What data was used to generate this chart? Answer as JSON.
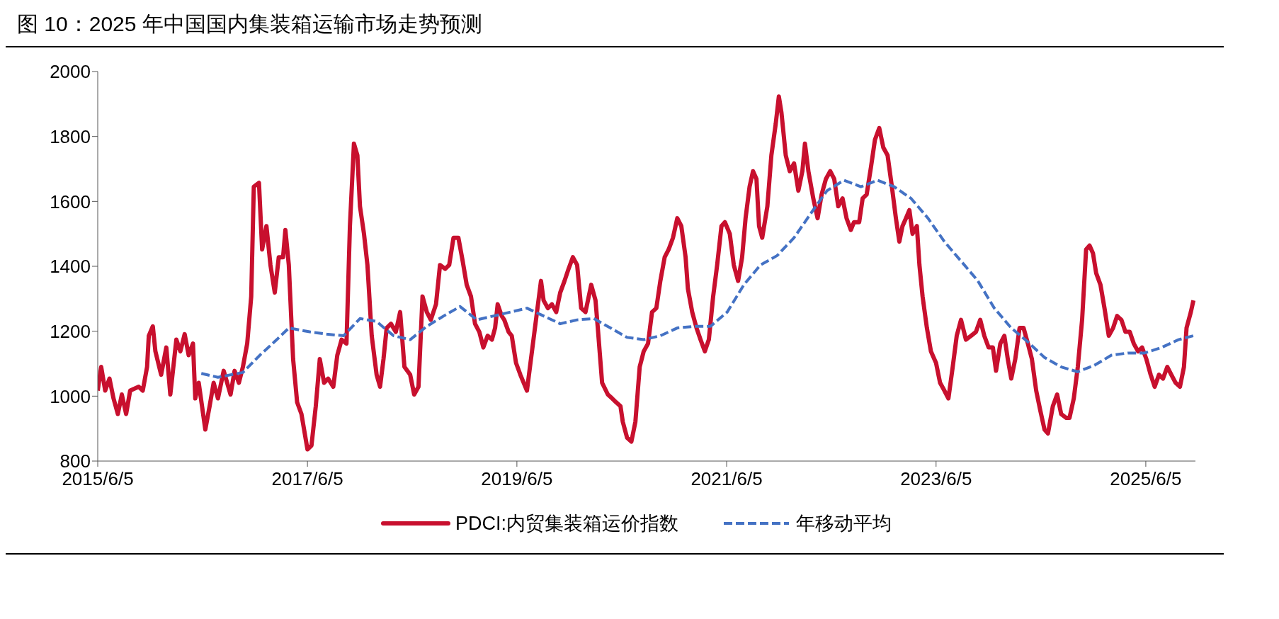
{
  "chart_data": {
    "type": "line",
    "title": "图 10：2025 年中国国内集装箱运输市场走势预测",
    "xlim": [
      "2015-06-05",
      "2025-11-25"
    ],
    "xticks": [
      {
        "value": "2015-06-05",
        "label": "2015/6/5"
      },
      {
        "value": "2017-06-05",
        "label": "2017/6/5"
      },
      {
        "value": "2019-06-05",
        "label": "2019/6/5"
      },
      {
        "value": "2021-06-05",
        "label": "2021/6/5"
      },
      {
        "value": "2023-06-05",
        "label": "2023/6/5"
      },
      {
        "value": "2025-06-05",
        "label": "2025/6/5"
      }
    ],
    "ylim": [
      800,
      2000
    ],
    "yticks": [
      800,
      1000,
      1200,
      1400,
      1600,
      1800,
      2000
    ],
    "legend": "bottom",
    "marker": "none",
    "series": [
      {
        "name": "PDCI:内贸集装箱运价指数",
        "color": "#c8102e",
        "line_style": "solid",
        "x": [
          "2015-06-05",
          "2015-06-17",
          "2015-07-01",
          "2015-07-16",
          "2015-07-30",
          "2015-08-14",
          "2015-08-28",
          "2015-09-12",
          "2015-09-26",
          "2015-10-26",
          "2015-11-09",
          "2015-11-24",
          "2015-11-30",
          "2015-12-14",
          "2015-12-23",
          "2016-01-12",
          "2016-01-30",
          "2016-02-13",
          "2016-03-05",
          "2016-03-19",
          "2016-04-03",
          "2016-04-17",
          "2016-05-02",
          "2016-05-10",
          "2016-05-22",
          "2016-06-14",
          "2016-06-29",
          "2016-07-13",
          "2016-07-28",
          "2016-08-17",
          "2016-09-10",
          "2016-09-24",
          "2016-10-09",
          "2016-10-23",
          "2016-11-07",
          "2016-11-21",
          "2016-11-30",
          "2016-12-18",
          "2016-12-29",
          "2017-01-13",
          "2017-01-27",
          "2017-02-11",
          "2017-02-25",
          "2017-03-12",
          "2017-03-20",
          "2017-04-01",
          "2017-04-16",
          "2017-04-30",
          "2017-05-15",
          "2017-06-05",
          "2017-06-19",
          "2017-07-04",
          "2017-07-18",
          "2017-08-02",
          "2017-08-16",
          "2017-09-03",
          "2017-09-17",
          "2017-10-02",
          "2017-10-19",
          "2017-10-31",
          "2017-11-14",
          "2017-11-26",
          "2017-12-05",
          "2017-12-19",
          "2017-12-31",
          "2018-01-15",
          "2018-02-01",
          "2018-02-13",
          "2018-02-25",
          "2018-03-08",
          "2018-03-23",
          "2018-04-09",
          "2018-04-24",
          "2018-05-09",
          "2018-05-29",
          "2018-06-12",
          "2018-06-27",
          "2018-07-11",
          "2018-07-26",
          "2018-08-09",
          "2018-08-27",
          "2018-09-10",
          "2018-09-28",
          "2018-10-12",
          "2018-10-27",
          "2018-11-13",
          "2018-11-28",
          "2018-12-12",
          "2018-12-27",
          "2019-01-10",
          "2019-01-25",
          "2019-02-08",
          "2019-02-23",
          "2019-03-10",
          "2019-03-21",
          "2019-03-30",
          "2019-04-13",
          "2019-04-22",
          "2019-05-07",
          "2019-05-18",
          "2019-06-02",
          "2019-06-17",
          "2019-07-10",
          "2019-07-24",
          "2019-08-14",
          "2019-08-28",
          "2019-09-06",
          "2019-09-21",
          "2019-10-05",
          "2019-10-20",
          "2019-11-03",
          "2019-11-18",
          "2019-12-02",
          "2019-12-17",
          "2020-01-01",
          "2020-01-15",
          "2020-01-30",
          "2020-02-19",
          "2020-03-05",
          "2020-03-13",
          "2020-03-28",
          "2020-04-17",
          "2020-05-02",
          "2020-05-16",
          "2020-05-31",
          "2020-06-08",
          "2020-06-23",
          "2020-07-08",
          "2020-07-22",
          "2020-08-06",
          "2020-08-20",
          "2020-09-04",
          "2020-09-18",
          "2020-10-03",
          "2020-10-17",
          "2020-11-01",
          "2020-11-15",
          "2020-11-30",
          "2020-12-15",
          "2020-12-29",
          "2021-01-13",
          "2021-01-21",
          "2021-02-05",
          "2021-02-20",
          "2021-03-06",
          "2021-03-21",
          "2021-04-04",
          "2021-04-19",
          "2021-05-03",
          "2021-05-18",
          "2021-05-30",
          "2021-06-16",
          "2021-06-30",
          "2021-07-15",
          "2021-07-29",
          "2021-08-10",
          "2021-08-24",
          "2021-09-05",
          "2021-09-17",
          "2021-09-26",
          "2021-10-07",
          "2021-10-25",
          "2021-11-08",
          "2021-11-23",
          "2021-12-04",
          "2021-12-13",
          "2021-12-28",
          "2022-01-11",
          "2022-01-26",
          "2022-02-10",
          "2022-02-24",
          "2022-03-05",
          "2022-03-17",
          "2022-04-03",
          "2022-04-18",
          "2022-05-02",
          "2022-05-17",
          "2022-06-01",
          "2022-06-15",
          "2022-06-29",
          "2022-07-14",
          "2022-07-28",
          "2022-08-12",
          "2022-08-23",
          "2022-09-10",
          "2022-09-22",
          "2022-10-06",
          "2022-10-21",
          "2022-11-04",
          "2022-11-19",
          "2022-12-03",
          "2022-12-18",
          "2023-01-02",
          "2023-01-16",
          "2023-01-28",
          "2023-02-08",
          "2023-02-20",
          "2023-03-04",
          "2023-03-15",
          "2023-03-30",
          "2023-04-08",
          "2023-04-19",
          "2023-05-04",
          "2023-05-18",
          "2023-06-05",
          "2023-06-19",
          "2023-07-04",
          "2023-07-18",
          "2023-08-02",
          "2023-08-16",
          "2023-08-31",
          "2023-09-17",
          "2023-10-05",
          "2023-10-22",
          "2023-11-06",
          "2023-11-20",
          "2023-12-05",
          "2023-12-20",
          "2023-12-31",
          "2024-01-15",
          "2024-01-29",
          "2024-02-10",
          "2024-02-22",
          "2024-03-07",
          "2024-03-22",
          "2024-04-05",
          "2024-04-20",
          "2024-05-04",
          "2024-05-19",
          "2024-06-02",
          "2024-06-17",
          "2024-06-29",
          "2024-07-16",
          "2024-07-31",
          "2024-08-14",
          "2024-09-01",
          "2024-09-12",
          "2024-09-27",
          "2024-10-11",
          "2024-10-26",
          "2024-11-09",
          "2024-11-21",
          "2024-12-03",
          "2024-12-14",
          "2024-12-29",
          "2025-01-12",
          "2025-01-27",
          "2025-02-11",
          "2025-02-25",
          "2025-03-12",
          "2025-03-26",
          "2025-04-10",
          "2025-04-24",
          "2025-05-09",
          "2025-05-23",
          "2025-06-07",
          "2025-06-22",
          "2025-07-06",
          "2025-07-21",
          "2025-08-04",
          "2025-08-19",
          "2025-09-02",
          "2025-09-17",
          "2025-10-02",
          "2025-10-16",
          "2025-10-25",
          "2025-11-09",
          "2025-11-18"
        ],
        "values": [
          1017,
          1090,
          1017,
          1054,
          993,
          945,
          1005,
          945,
          1017,
          1029,
          1017,
          1090,
          1186,
          1215,
          1138,
          1066,
          1150,
          1005,
          1174,
          1138,
          1191,
          1126,
          1162,
          993,
          1041,
          897,
          969,
          1041,
          993,
          1078,
          1005,
          1078,
          1041,
          1090,
          1162,
          1307,
          1645,
          1657,
          1452,
          1524,
          1404,
          1319,
          1428,
          1428,
          1512,
          1404,
          1114,
          981,
          945,
          836,
          848,
          969,
          1114,
          1041,
          1054,
          1029,
          1126,
          1174,
          1162,
          1524,
          1778,
          1742,
          1585,
          1500,
          1404,
          1186,
          1066,
          1029,
          1114,
          1210,
          1223,
          1198,
          1259,
          1090,
          1066,
          1005,
          1029,
          1307,
          1259,
          1235,
          1283,
          1404,
          1392,
          1404,
          1488,
          1488,
          1416,
          1343,
          1307,
          1223,
          1198,
          1150,
          1186,
          1174,
          1210,
          1283,
          1247,
          1235,
          1198,
          1186,
          1102,
          1066,
          1017,
          1114,
          1259,
          1355,
          1295,
          1271,
          1283,
          1259,
          1319,
          1355,
          1392,
          1428,
          1404,
          1271,
          1259,
          1343,
          1295,
          1210,
          1041,
          1005,
          993,
          981,
          969,
          921,
          872,
          860,
          921,
          1090,
          1138,
          1162,
          1259,
          1271,
          1355,
          1428,
          1452,
          1488,
          1548,
          1524,
          1428,
          1331,
          1259,
          1210,
          1174,
          1138,
          1174,
          1307,
          1404,
          1524,
          1536,
          1500,
          1404,
          1355,
          1428,
          1548,
          1645,
          1693,
          1669,
          1524,
          1488,
          1585,
          1742,
          1838,
          1923,
          1874,
          1742,
          1693,
          1717,
          1633,
          1693,
          1778,
          1693,
          1609,
          1548,
          1621,
          1669,
          1693,
          1669,
          1585,
          1609,
          1548,
          1512,
          1536,
          1536,
          1609,
          1621,
          1705,
          1790,
          1826,
          1766,
          1742,
          1645,
          1548,
          1476,
          1524,
          1548,
          1573,
          1500,
          1524,
          1404,
          1307,
          1210,
          1138,
          1102,
          1041,
          1017,
          993,
          1090,
          1186,
          1235,
          1174,
          1186,
          1198,
          1235,
          1186,
          1150,
          1150,
          1078,
          1162,
          1186,
          1114,
          1054,
          1114,
          1210,
          1210,
          1162,
          1114,
          1017,
          957,
          897,
          885,
          969,
          1005,
          945,
          933,
          933,
          993,
          1090,
          1235,
          1452,
          1464,
          1440,
          1379,
          1343,
          1271,
          1186,
          1210,
          1247,
          1235,
          1198,
          1198,
          1162,
          1138,
          1150,
          1114,
          1066,
          1029,
          1066,
          1054,
          1090,
          1066,
          1041,
          1029,
          1090,
          1210,
          1259,
          1295
        ]
      },
      {
        "name": "年移动平均",
        "color": "#4472c4",
        "line_style": "dashed",
        "x": [
          "2016-05-31",
          "2016-07-28",
          "2016-10-23",
          "2016-12-21",
          "2017-02-18",
          "2017-04-01",
          "2017-06-13",
          "2017-08-11",
          "2017-10-09",
          "2017-12-05",
          "2018-02-01",
          "2018-04-01",
          "2018-05-29",
          "2018-07-26",
          "2018-09-23",
          "2018-11-19",
          "2019-01-16",
          "2019-03-16",
          "2019-05-14",
          "2019-07-10",
          "2019-09-06",
          "2019-11-03",
          "2020-01-01",
          "2020-02-28",
          "2020-04-26",
          "2020-06-23",
          "2020-08-20",
          "2020-10-17",
          "2020-12-15",
          "2021-02-11",
          "2021-04-10",
          "2021-06-07",
          "2021-08-04",
          "2021-10-01",
          "2021-11-28",
          "2022-01-26",
          "2022-03-24",
          "2022-05-21",
          "2022-07-19",
          "2022-09-16",
          "2022-11-13",
          "2023-01-10",
          "2023-03-10",
          "2023-05-07",
          "2023-07-04",
          "2023-08-31",
          "2023-10-28",
          "2023-12-25",
          "2024-02-22",
          "2024-04-20",
          "2024-06-17",
          "2024-08-14",
          "2024-10-11",
          "2024-12-08",
          "2025-02-05",
          "2025-04-04",
          "2025-06-01",
          "2025-07-30",
          "2025-09-27",
          "2025-11-18"
        ],
        "values": [
          1070,
          1058,
          1073,
          1126,
          1174,
          1210,
          1198,
          1191,
          1186,
          1239,
          1230,
          1186,
          1174,
          1215,
          1247,
          1276,
          1235,
          1247,
          1259,
          1271,
          1247,
          1223,
          1235,
          1239,
          1210,
          1181,
          1174,
          1186,
          1210,
          1215,
          1215,
          1259,
          1343,
          1404,
          1433,
          1488,
          1561,
          1633,
          1665,
          1645,
          1665,
          1645,
          1609,
          1549,
          1476,
          1416,
          1356,
          1271,
          1210,
          1167,
          1119,
          1090,
          1075,
          1095,
          1126,
          1133,
          1133,
          1150,
          1174,
          1186
        ]
      }
    ]
  }
}
